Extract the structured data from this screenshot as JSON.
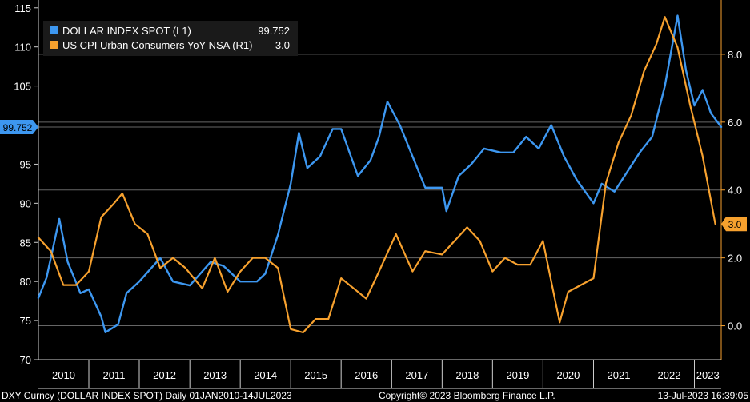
{
  "chart_data": {
    "type": "line",
    "legend_placement": "top-left",
    "grid": true,
    "x_range": [
      "2010-01-01",
      "2023-07-14"
    ],
    "x_tick_labels": [
      "2010",
      "2011",
      "2012",
      "2013",
      "2014",
      "2015",
      "2016",
      "2017",
      "2018",
      "2019",
      "2020",
      "2021",
      "2022",
      "2023"
    ],
    "y_left": {
      "ylim": [
        70,
        116
      ],
      "ticks": [
        70,
        75,
        80,
        85,
        90,
        95,
        100,
        105,
        110,
        115
      ],
      "tick_labels": [
        "70",
        "75",
        "80",
        "85",
        "90",
        "95",
        "100",
        "105",
        "110",
        "115"
      ]
    },
    "y_right": {
      "ylim": [
        -1.0,
        9.6
      ],
      "ticks": [
        0.0,
        2.0,
        4.0,
        6.0,
        8.0
      ],
      "tick_labels": [
        "0.0",
        "2.0",
        "4.0",
        "6.0",
        "8.0"
      ]
    },
    "series": [
      {
        "name": "DOLLAR INDEX SPOT  (L1)",
        "last_value_label": "99.752",
        "axis": "left",
        "color": "#3d97f0",
        "x": [
          "2010-01-01",
          "2010-03-01",
          "2010-06-01",
          "2010-08-01",
          "2010-11-01",
          "2011-01-01",
          "2011-04-01",
          "2011-05-01",
          "2011-08-01",
          "2011-10-01",
          "2012-01-01",
          "2012-06-01",
          "2012-09-01",
          "2013-01-01",
          "2013-06-01",
          "2013-09-01",
          "2014-01-01",
          "2014-05-01",
          "2014-07-01",
          "2014-10-01",
          "2015-01-01",
          "2015-03-01",
          "2015-05-01",
          "2015-08-01",
          "2015-11-01",
          "2016-01-01",
          "2016-05-01",
          "2016-08-01",
          "2016-10-01",
          "2016-12-01",
          "2017-03-01",
          "2017-06-01",
          "2017-09-01",
          "2018-01-01",
          "2018-02-01",
          "2018-05-01",
          "2018-08-01",
          "2018-11-01",
          "2019-03-01",
          "2019-06-01",
          "2019-09-01",
          "2019-12-01",
          "2020-03-01",
          "2020-06-01",
          "2020-09-01",
          "2021-01-01",
          "2021-03-01",
          "2021-06-01",
          "2021-09-01",
          "2021-12-01",
          "2022-03-01",
          "2022-06-01",
          "2022-09-01",
          "2022-11-01",
          "2023-01-01",
          "2023-03-01",
          "2023-05-01",
          "2023-07-14"
        ],
        "y": [
          77.9,
          80.5,
          88.0,
          82.5,
          78.5,
          79.0,
          75.5,
          73.5,
          74.5,
          78.5,
          80.0,
          83.0,
          80.0,
          79.5,
          82.5,
          82.0,
          80.0,
          80.0,
          81.0,
          86.0,
          92.5,
          99.0,
          94.5,
          96.0,
          99.5,
          99.5,
          93.5,
          95.5,
          98.5,
          103.0,
          100.0,
          96.0,
          92.0,
          92.0,
          89.0,
          93.5,
          95.0,
          97.0,
          96.5,
          96.5,
          98.5,
          97.0,
          100.0,
          96.0,
          93.0,
          90.0,
          92.5,
          91.5,
          94.0,
          96.5,
          98.5,
          105.0,
          114.0,
          107.0,
          102.5,
          104.5,
          101.5,
          99.752
        ]
      },
      {
        "name": "US CPI Urban Consumers YoY NSA  (R1)",
        "last_value_label": "3.0",
        "axis": "right",
        "color": "#f7a12e",
        "x": [
          "2010-01-01",
          "2010-04-01",
          "2010-07-01",
          "2010-10-01",
          "2011-01-01",
          "2011-04-01",
          "2011-07-01",
          "2011-09-01",
          "2011-12-01",
          "2012-03-01",
          "2012-06-01",
          "2012-09-01",
          "2012-12-01",
          "2013-04-01",
          "2013-07-01",
          "2013-10-01",
          "2014-01-01",
          "2014-04-01",
          "2014-07-01",
          "2014-10-01",
          "2015-01-01",
          "2015-04-01",
          "2015-07-01",
          "2015-10-01",
          "2016-01-01",
          "2016-04-01",
          "2016-07-01",
          "2016-10-01",
          "2017-02-01",
          "2017-06-01",
          "2017-09-01",
          "2018-01-01",
          "2018-04-01",
          "2018-07-01",
          "2018-10-01",
          "2019-01-01",
          "2019-04-01",
          "2019-07-01",
          "2019-10-01",
          "2020-01-01",
          "2020-05-01",
          "2020-07-01",
          "2020-10-01",
          "2021-01-01",
          "2021-04-01",
          "2021-07-01",
          "2021-10-01",
          "2022-01-01",
          "2022-04-01",
          "2022-06-01",
          "2022-09-01",
          "2022-12-01",
          "2023-03-01",
          "2023-06-01"
        ],
        "y": [
          2.6,
          2.2,
          1.2,
          1.2,
          1.6,
          3.2,
          3.6,
          3.9,
          3.0,
          2.7,
          1.7,
          2.0,
          1.7,
          1.1,
          2.0,
          1.0,
          1.6,
          2.0,
          2.0,
          1.7,
          -0.1,
          -0.2,
          0.2,
          0.2,
          1.4,
          1.1,
          0.8,
          1.6,
          2.7,
          1.6,
          2.2,
          2.1,
          2.5,
          2.9,
          2.5,
          1.6,
          2.0,
          1.8,
          1.8,
          2.5,
          0.1,
          1.0,
          1.2,
          1.4,
          4.2,
          5.4,
          6.2,
          7.5,
          8.3,
          9.1,
          8.2,
          6.5,
          5.0,
          3.0
        ]
      }
    ]
  },
  "footer": {
    "left": "DXY Curncy (DOLLAR INDEX SPOT)  Daily 01JAN2010-14JUL2023",
    "center": "Copyright© 2023 Bloomberg Finance L.P.",
    "right": "13-Jul-2023 16:39:05"
  }
}
